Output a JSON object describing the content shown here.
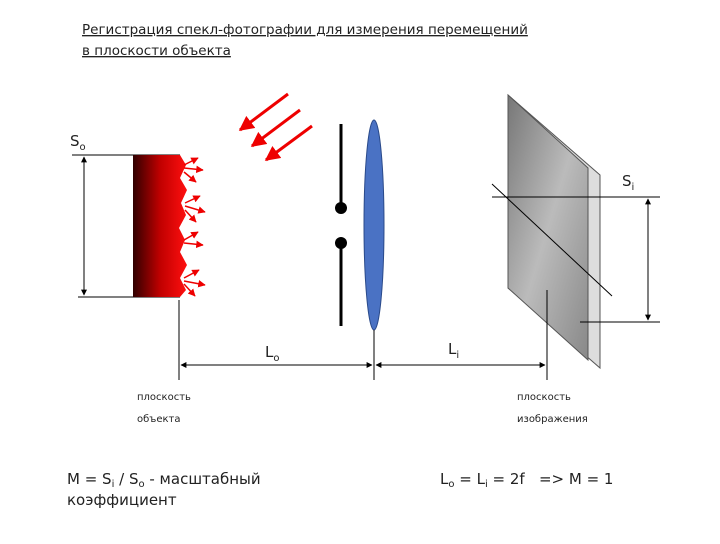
{
  "title": {
    "line1": "Регистрация спекл-фотографии для измерения перемещений",
    "line2": "в плоскости объекта"
  },
  "labels": {
    "s_object": {
      "main": "S",
      "sub": "o"
    },
    "s_image": {
      "main": "S",
      "sub": "i"
    },
    "l_object": {
      "main": "L",
      "sub": "o"
    },
    "l_image": {
      "main": "L",
      "sub": "i"
    }
  },
  "planes": {
    "object": [
      "плоскость",
      "объекта"
    ],
    "image": [
      "плоскость",
      "изображения"
    ]
  },
  "formulas": {
    "magnification": {
      "line1": [
        "M = S",
        "i",
        " / S",
        "o",
        " - масштабный"
      ],
      "line2": "коэффициент"
    },
    "condition": [
      "L",
      "o",
      " = L",
      "i",
      " = 2f   => M = 1"
    ]
  }
}
